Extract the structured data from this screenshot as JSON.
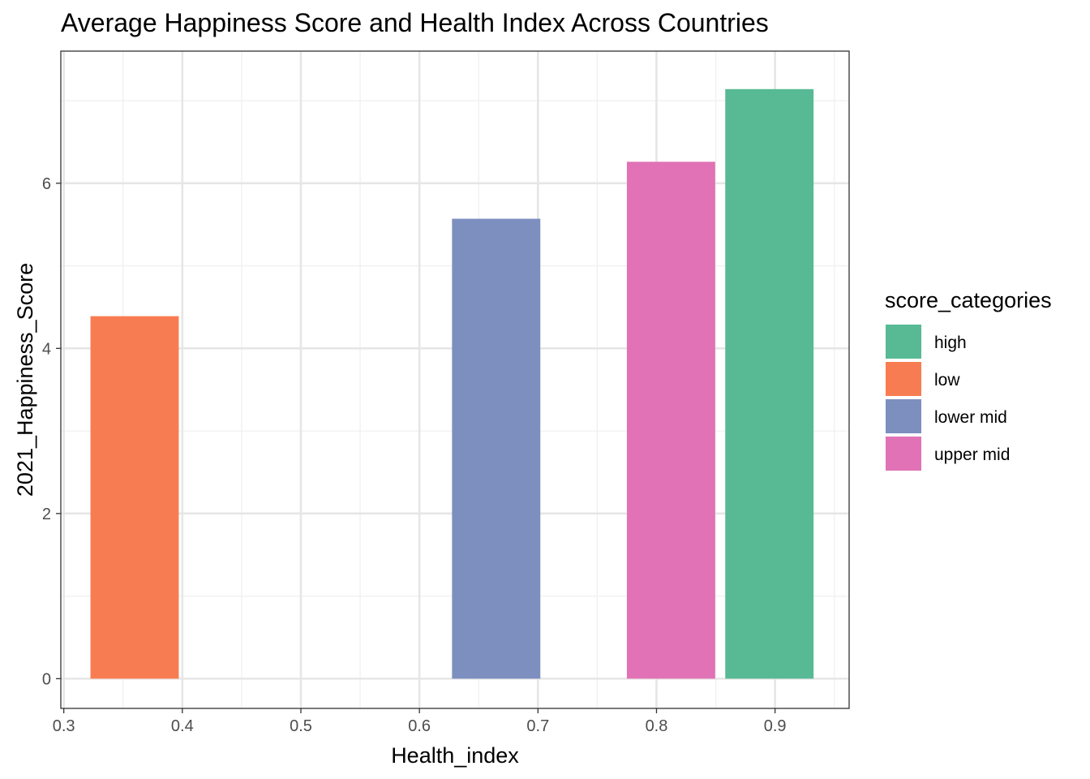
{
  "chart_data": {
    "type": "bar",
    "title": "Average Happiness Score and Health Index Across Countries",
    "xlabel": "Health_index",
    "ylabel": "2021_Happiness_Score",
    "xlim": [
      0.2975,
      0.9625
    ],
    "ylim": [
      -0.36,
      7.6
    ],
    "x_ticks": [
      0.3,
      0.4,
      0.5,
      0.6,
      0.7,
      0.8,
      0.9
    ],
    "x_tick_labels": [
      "0.3",
      "0.4",
      "0.5",
      "0.6",
      "0.7",
      "0.8",
      "0.9"
    ],
    "y_ticks": [
      0,
      2,
      4,
      6
    ],
    "y_tick_labels": [
      "0",
      "2",
      "4",
      "6"
    ],
    "grid": true,
    "legend": {
      "title": "score_categories",
      "position": "right",
      "entries": [
        {
          "label": "high",
          "color": "#57BA94"
        },
        {
          "label": "low",
          "color": "#F87C52"
        },
        {
          "label": "lower mid",
          "color": "#7D8FBF"
        },
        {
          "label": "upper mid",
          "color": "#E072B5"
        }
      ]
    },
    "bars": [
      {
        "category": "low",
        "x_start": 0.3225,
        "x_end": 0.397,
        "value": 4.39,
        "color": "#F87C52"
      },
      {
        "category": "lower mid",
        "x_start": 0.6275,
        "x_end": 0.702,
        "value": 5.57,
        "color": "#7D8FBF"
      },
      {
        "category": "upper mid",
        "x_start": 0.775,
        "x_end": 0.8495,
        "value": 6.26,
        "color": "#E072B5"
      },
      {
        "category": "high",
        "x_start": 0.858,
        "x_end": 0.9325,
        "value": 7.14,
        "color": "#57BA94"
      }
    ]
  }
}
